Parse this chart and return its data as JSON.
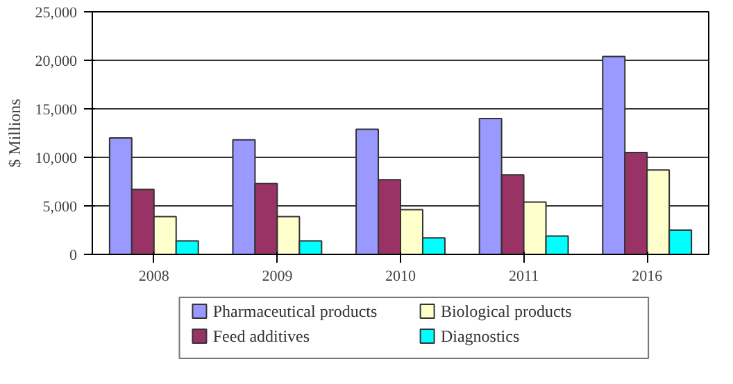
{
  "chart_data": {
    "type": "bar",
    "categories": [
      "2008",
      "2009",
      "2010",
      "2011",
      "2016"
    ],
    "ylabel": "$ Millions",
    "ylim": [
      0,
      25000
    ],
    "yticks": [
      {
        "value": 0,
        "label": "0"
      },
      {
        "value": 5000,
        "label": "5,000"
      },
      {
        "value": 10000,
        "label": "10,000"
      },
      {
        "value": 15000,
        "label": "15,000"
      },
      {
        "value": 20000,
        "label": "20,000"
      },
      {
        "value": 25000,
        "label": "25,000"
      }
    ],
    "grid": "y",
    "legend": "bottom",
    "series": [
      {
        "name": "Pharmaceutical products",
        "color": "#9999ff",
        "values": [
          12000,
          11800,
          12900,
          14000,
          20400
        ]
      },
      {
        "name": "Feed additives",
        "color": "#993366",
        "values": [
          6700,
          7300,
          7700,
          8200,
          10500
        ]
      },
      {
        "name": "Biological products",
        "color": "#ffffcc",
        "values": [
          3900,
          3900,
          4600,
          5400,
          8700
        ]
      },
      {
        "name": "Diagnostics",
        "color": "#00ffff",
        "values": [
          1400,
          1400,
          1700,
          1900,
          2500
        ]
      }
    ]
  }
}
